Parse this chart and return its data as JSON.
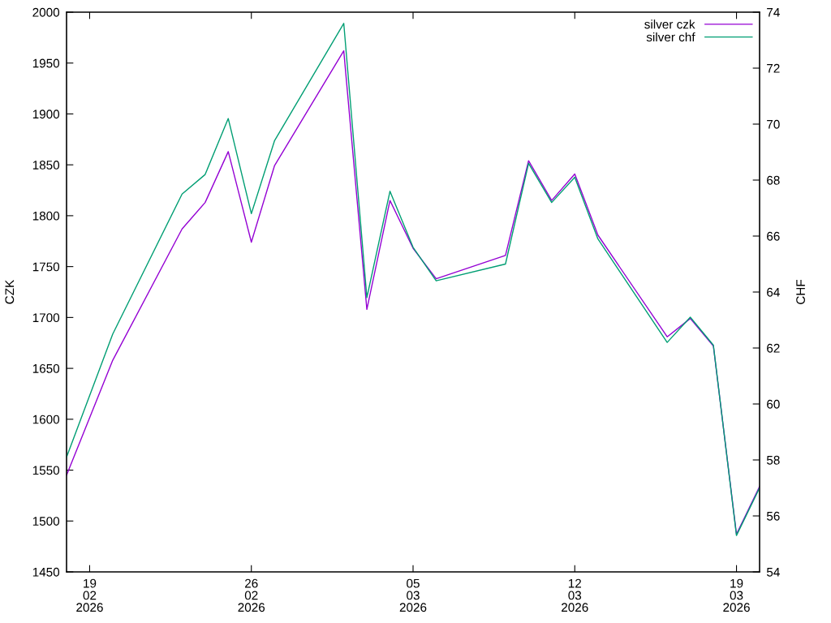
{
  "chart_data": {
    "type": "line",
    "ylabel": "CZK",
    "y2label": "CHF",
    "x": [
      "2026-02-18",
      "2026-02-20",
      "2026-02-23",
      "2026-02-24",
      "2026-02-25",
      "2026-02-26",
      "2026-02-27",
      "2026-03-02",
      "2026-03-03",
      "2026-03-04",
      "2026-03-05",
      "2026-03-06",
      "2026-03-09",
      "2026-03-10",
      "2026-03-11",
      "2026-03-12",
      "2026-03-13",
      "2026-03-16",
      "2026-03-17",
      "2026-03-18",
      "2026-03-19",
      "2026-03-20"
    ],
    "series": [
      {
        "name": "silver czk",
        "color": "#9400d3",
        "values": [
          1545,
          1658,
          1787,
          1813,
          1863,
          1774,
          1849,
          1962,
          1708,
          1815,
          1768,
          1738,
          1761,
          1854,
          1815,
          1841,
          1781,
          1681,
          1699,
          1672,
          1487,
          1534
        ]
      },
      {
        "name": "silver chf",
        "color": "#009e73",
        "axis": "y2",
        "values": [
          58.1,
          62.5,
          67.5,
          68.2,
          70.2,
          66.8,
          69.4,
          73.6,
          63.8,
          67.6,
          65.6,
          64.4,
          65.0,
          68.6,
          67.2,
          68.1,
          65.9,
          62.2,
          63.1,
          62.1,
          55.3,
          57.0
        ]
      }
    ],
    "xlim": [
      "2026-02-18",
      "2026-03-20"
    ],
    "xticks": [
      {
        "value": "2026-02-19",
        "label": "19\n02\n2026"
      },
      {
        "value": "2026-02-26",
        "label": "26\n02\n2026"
      },
      {
        "value": "2026-03-05",
        "label": "05\n03\n2026"
      },
      {
        "value": "2026-03-12",
        "label": "12\n03\n2026"
      },
      {
        "value": "2026-03-19",
        "label": "19\n03\n2026"
      }
    ],
    "ylim": [
      1450,
      2000
    ],
    "yticks": [
      1450,
      1500,
      1550,
      1600,
      1650,
      1700,
      1750,
      1800,
      1850,
      1900,
      1950,
      2000
    ],
    "y2lim": [
      54,
      74
    ],
    "y2ticks": [
      54,
      56,
      58,
      60,
      62,
      64,
      66,
      68,
      70,
      72,
      74
    ],
    "legend": "top right",
    "marker": "none",
    "line_style": "solid"
  }
}
